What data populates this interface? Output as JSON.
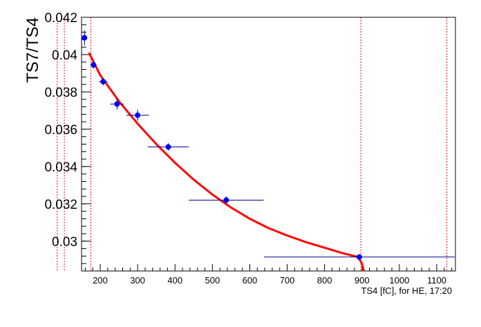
{
  "chart_data": {
    "type": "scatter",
    "title": "",
    "xlabel": "TS4 [fC], for HE, 17:20",
    "ylabel": "TS7/TS4",
    "xlim": [
      150,
      1150
    ],
    "ylim": [
      0.0284,
      0.042
    ],
    "x_ticks": [
      200,
      300,
      400,
      500,
      600,
      700,
      800,
      900,
      1000,
      1100
    ],
    "y_ticks": [
      0.03,
      0.032,
      0.034,
      0.036,
      0.038,
      0.04,
      0.042
    ],
    "y_tick_labels": [
      "0.03",
      "0.032",
      "0.034",
      "0.036",
      "0.038",
      "0.04",
      "0.042"
    ],
    "grid": false,
    "points": [
      {
        "x": 158,
        "y": 0.0409,
        "xerr": 0,
        "yerr": 0.0004
      },
      {
        "x": 182,
        "y": 0.03945,
        "xerr": 8,
        "yerr": 0.0002
      },
      {
        "x": 208,
        "y": 0.03855,
        "xerr": 12,
        "yerr": 0.0002
      },
      {
        "x": 245,
        "y": 0.03735,
        "xerr": 18,
        "yerr": 0.0003
      },
      {
        "x": 300,
        "y": 0.03675,
        "xerr": 30,
        "yerr": 0.0003
      },
      {
        "x": 382,
        "y": 0.03505,
        "xerr": 55,
        "yerr": 0.0002
      },
      {
        "x": 537,
        "y": 0.0322,
        "xerr": 100,
        "yerr": 0.0002
      },
      {
        "x": 893,
        "y": 0.02915,
        "xerr": 255,
        "yerr": 0.0001
      }
    ],
    "fit_curve": {
      "color": "#ff0000",
      "x": [
        170,
        200,
        250,
        300,
        350,
        400,
        450,
        500,
        550,
        600,
        650,
        700,
        750,
        800,
        850,
        890,
        900,
        905
      ],
      "y": [
        0.0401,
        0.0389,
        0.0375,
        0.0363,
        0.0352,
        0.0342,
        0.0333,
        0.0325,
        0.0318,
        0.0312,
        0.0307,
        0.0303,
        0.02995,
        0.02965,
        0.02935,
        0.02915,
        0.0288,
        0.0284
      ]
    },
    "vertical_lines": [
      {
        "x": 85
      },
      {
        "x": 104
      },
      {
        "x": 175
      },
      {
        "x": 897
      },
      {
        "x": 1127
      }
    ],
    "colors": {
      "points": "#0000ff",
      "fit": "#ff0000",
      "lines": "#ff0000"
    }
  }
}
